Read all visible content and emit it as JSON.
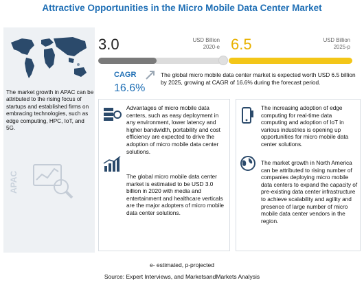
{
  "title": "Attractive Opportunities in the Micro Mobile Data Center Market",
  "colors": {
    "title_blue": "#1f6fb5",
    "accent_yellow": "#f3c618",
    "grey_bar": "#7a7a7a",
    "panel_bg": "#eef1f4"
  },
  "left_panel": {
    "region_text": "The market growth in APAC can be attributed to the rising focus of startups and established firms on embracing technologies, such as edge computing, HPC, IoT, and 5G.",
    "region_label": "APAC",
    "icons": [
      "world-map-icon",
      "magnifier-chart-icon"
    ]
  },
  "market_2020": {
    "value": "3.0",
    "unit": "USD Billion",
    "year": "2020-e"
  },
  "market_2025": {
    "value": "6.5",
    "unit": "USD Billion",
    "year": "2025-p"
  },
  "cagr": {
    "label": "CAGR",
    "value": "16.6%",
    "text": "The global micro mobile data center market is expected worth USD 6.5 billion by 2025, growing at CAGR of 16.6% during the forecast period."
  },
  "middle": {
    "point1": "Advantages of micro mobile data centers, such as easy deployment in any environment, lower latency and higher bandwidth, portability and cost efficiency are expected to drive the adoption of micro mobile data center solutions.",
    "point2": "The global micro mobile data center market is estimated to be USD 3.0 billion in 2020 with media and entertainment and healthcare verticals are the major adopters of micro mobile data center solutions.",
    "icons": [
      "server-rack-icon",
      "bar-chart-icon"
    ]
  },
  "right": {
    "point1": "The increasing adoption of edge computing for real-time data computing and adoption of IoT in various industries is opening up opportunities for micro mobile data center solutions.",
    "point2": "The market growth in North America can be attributed to rising number of companies deploying micro mobile data centers to expand the capacity of pre-existing data center infrastructure to achieve scalability and agility and presence of large number of micro mobile data center vendors in the region.",
    "icons": [
      "mobile-phone-icon",
      "globe-icon"
    ]
  },
  "footer": {
    "legend": "e- estimated, p-projected",
    "source": "Source: Expert Interviews, and MarketsandMarkets Analysis"
  }
}
